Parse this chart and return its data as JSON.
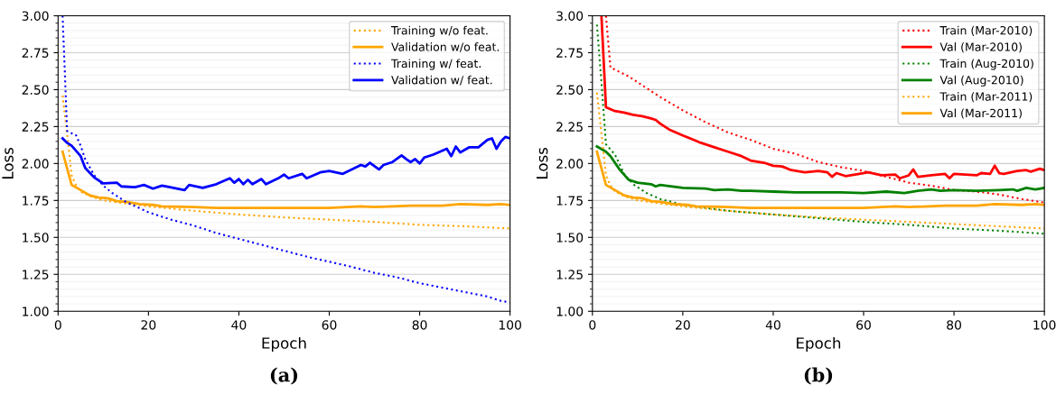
{
  "chart_data": [
    {
      "type": "line",
      "xlabel": "Epoch",
      "ylabel": "Loss",
      "xlim": [
        0,
        100
      ],
      "ylim": [
        1.0,
        3.0
      ],
      "xticks": [
        0,
        20,
        40,
        60,
        80,
        100
      ],
      "yticks": [
        {
          "value": 1.0,
          "label": "1.00"
        },
        {
          "value": 1.25,
          "label": "1.25"
        },
        {
          "value": 1.5,
          "label": "1.50"
        },
        {
          "value": 1.75,
          "label": "1.75"
        },
        {
          "value": 2.0,
          "label": "2.00"
        },
        {
          "value": 2.25,
          "label": "2.25"
        },
        {
          "value": 2.5,
          "label": "2.50"
        },
        {
          "value": 2.75,
          "label": "2.75"
        },
        {
          "value": 3.0,
          "label": "3.00"
        }
      ],
      "grid": "y",
      "legend": "top right",
      "marker": "none",
      "annotations": [
        "(a)"
      ],
      "series": [
        {
          "name": "Training w/o feat.",
          "color": "#ffa500",
          "line_style": "dotted",
          "x": [
            1,
            2,
            3,
            4,
            5,
            7,
            10,
            15,
            20,
            30,
            40,
            50,
            60,
            70,
            80,
            90,
            100
          ],
          "values": [
            2.46,
            2.2,
            1.92,
            1.85,
            1.81,
            1.78,
            1.75,
            1.73,
            1.71,
            1.68,
            1.655,
            1.635,
            1.62,
            1.605,
            1.585,
            1.575,
            1.56
          ]
        },
        {
          "name": "Validation w/o feat.",
          "color": "#ffa500",
          "line_style": "solid",
          "x": [
            1,
            3,
            5,
            7,
            9,
            11,
            13,
            15,
            18,
            21,
            23,
            30,
            35,
            40,
            50,
            60,
            67,
            70,
            78,
            85,
            89,
            95,
            98,
            100
          ],
          "values": [
            2.08,
            1.855,
            1.82,
            1.785,
            1.77,
            1.765,
            1.745,
            1.74,
            1.725,
            1.72,
            1.71,
            1.705,
            1.7,
            1.7,
            1.7,
            1.7,
            1.71,
            1.705,
            1.715,
            1.715,
            1.725,
            1.72,
            1.725,
            1.72
          ]
        },
        {
          "name": "Training w/ feat.",
          "color": "#0000ff",
          "line_style": "dotted",
          "x": [
            1,
            2,
            4,
            5,
            6,
            8,
            10,
            12,
            15,
            20,
            25,
            30,
            35,
            40,
            45,
            50,
            55,
            60,
            65,
            70,
            75,
            80,
            85,
            90,
            95,
            98,
            100
          ],
          "values": [
            3.0,
            2.22,
            2.19,
            2.12,
            2.03,
            1.92,
            1.85,
            1.8,
            1.74,
            1.67,
            1.62,
            1.58,
            1.53,
            1.49,
            1.45,
            1.41,
            1.37,
            1.335,
            1.3,
            1.26,
            1.23,
            1.19,
            1.16,
            1.13,
            1.1,
            1.07,
            1.06
          ]
        },
        {
          "name": "Validation w/ feat.",
          "color": "#0000ff",
          "line_style": "solid",
          "x": [
            1,
            2,
            3,
            5,
            6,
            8,
            10,
            13,
            14,
            17,
            19,
            21,
            23,
            28,
            29,
            32,
            35,
            38,
            39,
            40,
            41,
            42,
            43,
            45,
            46,
            49,
            50,
            51,
            54,
            55,
            58,
            60,
            63,
            67,
            68,
            69,
            71,
            72,
            74,
            76,
            77,
            78,
            79,
            80,
            81,
            83,
            86,
            87,
            88,
            89,
            91,
            93,
            95,
            96,
            97,
            98,
            99,
            100
          ],
          "values": [
            2.17,
            2.14,
            2.12,
            2.05,
            1.97,
            1.905,
            1.865,
            1.87,
            1.845,
            1.84,
            1.855,
            1.83,
            1.85,
            1.82,
            1.855,
            1.835,
            1.86,
            1.9,
            1.87,
            1.895,
            1.86,
            1.89,
            1.86,
            1.895,
            1.86,
            1.905,
            1.925,
            1.9,
            1.93,
            1.9,
            1.94,
            1.95,
            1.93,
            1.99,
            1.98,
            2.005,
            1.96,
            1.99,
            2.01,
            2.055,
            2.03,
            2.01,
            2.03,
            2.0,
            2.04,
            2.06,
            2.1,
            2.05,
            2.115,
            2.075,
            2.11,
            2.11,
            2.16,
            2.17,
            2.1,
            2.15,
            2.18,
            2.17
          ]
        }
      ]
    },
    {
      "type": "line",
      "xlabel": "Epoch",
      "ylabel": "Loss",
      "xlim": [
        0,
        100
      ],
      "ylim": [
        1.0,
        3.0
      ],
      "xticks": [
        0,
        20,
        40,
        60,
        80,
        100
      ],
      "yticks": [
        {
          "value": 1.0,
          "label": "1.00"
        },
        {
          "value": 1.25,
          "label": "1.25"
        },
        {
          "value": 1.5,
          "label": "1.50"
        },
        {
          "value": 1.75,
          "label": "1.75"
        },
        {
          "value": 2.0,
          "label": "2.00"
        },
        {
          "value": 2.25,
          "label": "2.25"
        },
        {
          "value": 2.5,
          "label": "2.50"
        },
        {
          "value": 2.75,
          "label": "2.75"
        },
        {
          "value": 3.0,
          "label": "3.00"
        }
      ],
      "grid": "y",
      "legend": "top right",
      "marker": "none",
      "annotations": [
        "(b)"
      ],
      "series": [
        {
          "name": "Train (Mar-2010)",
          "color": "#ff0000",
          "line_style": "dotted",
          "x": [
            3,
            4,
            6,
            8,
            10,
            15,
            20,
            25,
            30,
            35,
            40,
            45,
            50,
            55,
            60,
            65,
            70,
            75,
            80,
            85,
            90,
            95,
            100
          ],
          "values": [
            3.0,
            2.65,
            2.62,
            2.59,
            2.55,
            2.45,
            2.36,
            2.28,
            2.21,
            2.16,
            2.1,
            2.065,
            2.01,
            1.975,
            1.95,
            1.91,
            1.87,
            1.85,
            1.82,
            1.81,
            1.79,
            1.76,
            1.735
          ]
        },
        {
          "name": "Val (Mar-2010)",
          "color": "#ff0000",
          "line_style": "solid",
          "x": [
            2,
            3,
            5,
            7,
            9,
            11,
            13,
            14,
            15,
            17,
            20,
            22,
            24,
            27,
            30,
            33,
            35,
            38,
            40,
            42,
            44,
            47,
            50,
            52,
            53,
            54,
            56,
            59,
            61,
            64,
            67,
            68,
            70,
            71,
            72,
            75,
            78,
            79,
            80,
            85,
            86,
            88,
            89,
            90,
            91,
            94,
            96,
            97,
            99,
            100
          ],
          "values": [
            3.0,
            2.38,
            2.355,
            2.345,
            2.33,
            2.32,
            2.305,
            2.295,
            2.27,
            2.23,
            2.19,
            2.165,
            2.14,
            2.11,
            2.08,
            2.05,
            2.02,
            2.005,
            1.985,
            1.98,
            1.955,
            1.94,
            1.95,
            1.94,
            1.91,
            1.935,
            1.915,
            1.93,
            1.94,
            1.92,
            1.925,
            1.9,
            1.92,
            1.96,
            1.91,
            1.92,
            1.93,
            1.9,
            1.93,
            1.92,
            1.935,
            1.93,
            1.985,
            1.935,
            1.93,
            1.95,
            1.955,
            1.945,
            1.965,
            1.955
          ]
        },
        {
          "name": "Train (Aug-2010)",
          "color": "#008000",
          "line_style": "dotted",
          "x": [
            1,
            2,
            3,
            5,
            7,
            9,
            12,
            15,
            20,
            30,
            40,
            50,
            60,
            70,
            80,
            90,
            100
          ],
          "values": [
            2.94,
            2.55,
            2.13,
            2.06,
            1.93,
            1.86,
            1.8,
            1.76,
            1.72,
            1.68,
            1.655,
            1.63,
            1.605,
            1.585,
            1.56,
            1.545,
            1.525
          ]
        },
        {
          "name": "Val (Aug-2010)",
          "color": "#008000",
          "line_style": "solid",
          "x": [
            1,
            3,
            4,
            6,
            8,
            10,
            13,
            14,
            15,
            20,
            25,
            27,
            30,
            33,
            35,
            40,
            45,
            50,
            55,
            60,
            65,
            69,
            72,
            75,
            77,
            80,
            85,
            90,
            93,
            94,
            96,
            98,
            100
          ],
          "values": [
            2.115,
            2.08,
            2.05,
            1.96,
            1.89,
            1.87,
            1.86,
            1.845,
            1.855,
            1.835,
            1.83,
            1.82,
            1.825,
            1.815,
            1.815,
            1.81,
            1.805,
            1.805,
            1.805,
            1.8,
            1.81,
            1.8,
            1.815,
            1.825,
            1.815,
            1.82,
            1.815,
            1.82,
            1.825,
            1.815,
            1.835,
            1.825,
            1.835
          ]
        },
        {
          "name": "Train (Mar-2011)",
          "color": "#ffa500",
          "line_style": "dotted",
          "x": [
            1,
            2,
            3,
            4,
            5,
            7,
            10,
            15,
            20,
            30,
            40,
            50,
            60,
            70,
            80,
            90,
            100
          ],
          "values": [
            2.48,
            2.2,
            1.92,
            1.85,
            1.81,
            1.78,
            1.75,
            1.73,
            1.71,
            1.68,
            1.655,
            1.635,
            1.62,
            1.605,
            1.59,
            1.575,
            1.56
          ]
        },
        {
          "name": "Val (Mar-2011)",
          "color": "#ffa500",
          "line_style": "solid",
          "x": [
            1,
            3,
            5,
            7,
            9,
            11,
            13,
            15,
            18,
            21,
            23,
            30,
            35,
            40,
            50,
            60,
            67,
            70,
            78,
            85,
            89,
            95,
            98,
            100
          ],
          "values": [
            2.08,
            1.855,
            1.82,
            1.785,
            1.77,
            1.765,
            1.745,
            1.74,
            1.725,
            1.72,
            1.71,
            1.705,
            1.7,
            1.7,
            1.7,
            1.7,
            1.71,
            1.705,
            1.715,
            1.715,
            1.725,
            1.72,
            1.725,
            1.72
          ]
        }
      ]
    }
  ]
}
